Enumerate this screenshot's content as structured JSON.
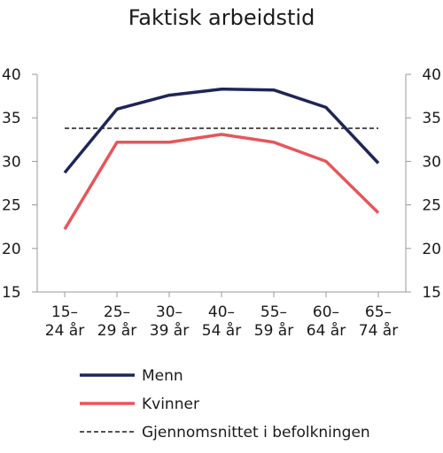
{
  "chart_data": {
    "type": "line",
    "title": "Faktisk arbeidstid",
    "categories": [
      [
        "15–",
        "24 år"
      ],
      [
        "25–",
        "29 år"
      ],
      [
        "30–",
        "39 år"
      ],
      [
        "40–",
        "54 år"
      ],
      [
        "55–",
        "59 år"
      ],
      [
        "60–",
        "64 år"
      ],
      [
        "65–",
        "74 år"
      ]
    ],
    "ylim": [
      15,
      40
    ],
    "yticks": [
      15,
      20,
      25,
      30,
      35,
      40
    ],
    "right_axis": true,
    "grid": false,
    "legend_position": "bottom",
    "series": [
      {
        "name": "Menn",
        "color": "#1e2557",
        "style": "solid",
        "values": [
          28.7,
          36.0,
          37.6,
          38.3,
          38.2,
          36.2,
          29.8
        ]
      },
      {
        "name": "Kvinner",
        "color": "#e8555a",
        "style": "solid",
        "values": [
          22.2,
          32.2,
          32.2,
          33.1,
          32.2,
          30.0,
          24.1
        ]
      }
    ],
    "reference_line": {
      "name": "Gjennomsnittet i befolkningen",
      "color": "#1a1a1a",
      "style": "dashed",
      "value": 33.8
    }
  }
}
